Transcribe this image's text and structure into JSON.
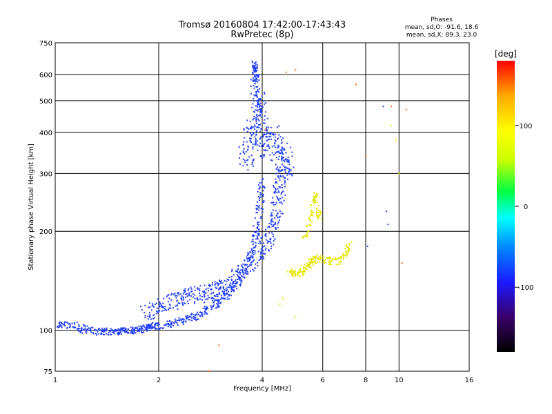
{
  "chart_data": {
    "type": "scatter",
    "title": "Tromsø 20160804 17:42:00-17:43:43",
    "subtitle": "RwPretec (8p)",
    "xlabel": "Frequency [MHz]",
    "ylabel": "Stationary phase Virtual Height [km]",
    "x_scale": "log",
    "y_scale": "log",
    "xlim": [
      1,
      16
    ],
    "ylim": [
      75,
      750
    ],
    "x_ticks": [
      1,
      2,
      4,
      6,
      8,
      10,
      16
    ],
    "y_ticks": [
      75,
      100,
      200,
      300,
      400,
      500,
      600,
      750
    ],
    "grid": true,
    "stats": {
      "heading": "Phases",
      "line_o": "mean, sd,O: -91.6, 18.6",
      "line_x": "mean, sd,X: 89.3, 23.0"
    },
    "colorbar": {
      "label": "[deg]",
      "range": [
        -180,
        180
      ],
      "ticks": [
        100,
        0,
        -100
      ],
      "colormap": [
        "#000000",
        "#3a006a",
        "#1a1aff",
        "#0088ff",
        "#00ffff",
        "#00ff44",
        "#ccff00",
        "#ffff00",
        "#ffaa00",
        "#ff0000"
      ]
    },
    "series": [
      {
        "color_role": "O-mode (phase ≈ -100 deg)",
        "color": "#1e3cff",
        "trace": [
          [
            1.0,
            103
          ],
          [
            1.1,
            104
          ],
          [
            1.2,
            101
          ],
          [
            1.3,
            99
          ],
          [
            1.4,
            99
          ],
          [
            1.5,
            99
          ],
          [
            1.6,
            100
          ],
          [
            1.7,
            100
          ],
          [
            1.8,
            101
          ],
          [
            1.9,
            103
          ],
          [
            2.0,
            103
          ],
          [
            2.2,
            105
          ],
          [
            2.4,
            108
          ],
          [
            2.6,
            111
          ],
          [
            2.8,
            116
          ],
          [
            3.0,
            122
          ],
          [
            3.2,
            130
          ],
          [
            3.4,
            140
          ],
          [
            3.6,
            155
          ],
          [
            3.75,
            175
          ],
          [
            3.85,
            200
          ],
          [
            3.95,
            240
          ],
          [
            4.0,
            290
          ]
        ],
        "lower_branch": [
          [
            1.8,
            112
          ],
          [
            2.0,
            118
          ],
          [
            2.2,
            123
          ],
          [
            2.4,
            126
          ],
          [
            2.6,
            128
          ],
          [
            2.8,
            130
          ],
          [
            3.0,
            133
          ],
          [
            3.2,
            140
          ],
          [
            3.5,
            150
          ],
          [
            3.8,
            165
          ],
          [
            4.1,
            180
          ],
          [
            4.3,
            200
          ],
          [
            4.4,
            230
          ],
          [
            4.5,
            270
          ],
          [
            4.6,
            300
          ]
        ],
        "f2_cluster": [
          [
            3.6,
            340
          ],
          [
            3.7,
            380
          ],
          [
            3.8,
            420
          ],
          [
            3.9,
            480
          ],
          [
            4.0,
            400
          ],
          [
            4.1,
            360
          ],
          [
            4.3,
            380
          ],
          [
            4.5,
            360
          ],
          [
            4.6,
            330
          ],
          [
            4.7,
            320
          ]
        ],
        "vertical_spike": [
          [
            3.75,
            550
          ],
          [
            3.8,
            650
          ],
          [
            3.85,
            600
          ],
          [
            3.9,
            500
          ],
          [
            3.95,
            450
          ]
        ],
        "isolated": [
          [
            8.1,
            180
          ],
          [
            9.0,
            480
          ],
          [
            9.2,
            230
          ],
          [
            9.3,
            210
          ]
        ]
      },
      {
        "color_role": "X-mode (phase ≈ +90 deg)",
        "color": "#e6e600",
        "trace": [
          [
            4.8,
            150
          ],
          [
            5.0,
            148
          ],
          [
            5.2,
            150
          ],
          [
            5.4,
            157
          ],
          [
            5.6,
            162
          ],
          [
            5.8,
            165
          ],
          [
            6.2,
            163
          ],
          [
            6.6,
            162
          ],
          [
            7.0,
            170
          ],
          [
            7.2,
            185
          ]
        ],
        "upper_arc": [
          [
            5.3,
            190
          ],
          [
            5.5,
            210
          ],
          [
            5.6,
            240
          ],
          [
            5.7,
            260
          ],
          [
            5.8,
            230
          ],
          [
            5.9,
            220
          ]
        ],
        "sparse": [
          [
            4.5,
            120
          ],
          [
            4.6,
            125
          ],
          [
            5.0,
            110
          ],
          [
            9.5,
            420
          ],
          [
            9.8,
            380
          ],
          [
            10.0,
            300
          ]
        ]
      },
      {
        "color_role": "scattered off-mode",
        "color": "#ff6600",
        "points": [
          [
            4.7,
            610
          ],
          [
            5.0,
            620
          ],
          [
            7.5,
            560
          ],
          [
            9.5,
            480
          ],
          [
            10.5,
            470
          ],
          [
            10.2,
            160
          ],
          [
            3.0,
            90
          ],
          [
            2.8,
            75
          ],
          [
            4.1,
            410
          ],
          [
            8.0,
            340
          ]
        ]
      }
    ]
  }
}
